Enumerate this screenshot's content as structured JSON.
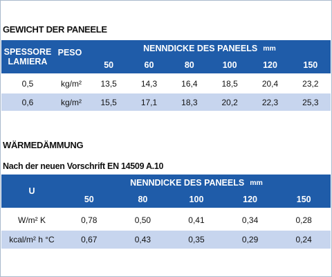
{
  "weight": {
    "title": "GEWICHT DER PANEELE",
    "header": {
      "thickness": "SPESSORE LAMIERA",
      "weight": "PESO",
      "panel": "NENNDICKE DES PANEELS",
      "unit": "mm",
      "columns": [
        "50",
        "60",
        "80",
        "100",
        "120",
        "150"
      ]
    },
    "rows": [
      [
        "0,5",
        "kg/m²",
        "13,5",
        "14,3",
        "16,4",
        "18,5",
        "20,4",
        "23,2"
      ],
      [
        "0,6",
        "kg/m²",
        "15,5",
        "17,1",
        "18,3",
        "20,2",
        "22,3",
        "25,3"
      ]
    ]
  },
  "insulation": {
    "title": "WÄRMEDÄMMUNG",
    "subtitle": "Nach der neuen Vorschrift EN 14509 A.10",
    "header": {
      "u": "U",
      "panel": "NENNDICKE DES PANEELS",
      "unit": "mm",
      "columns": [
        "50",
        "80",
        "100",
        "120",
        "150"
      ]
    },
    "rows": [
      [
        "W/m² K",
        "0,78",
        "0,50",
        "0,41",
        "0,34",
        "0,28"
      ],
      [
        "kcal/m² h °C",
        "0,67",
        "0,43",
        "0,35",
        "0,29",
        "0,24"
      ]
    ]
  }
}
